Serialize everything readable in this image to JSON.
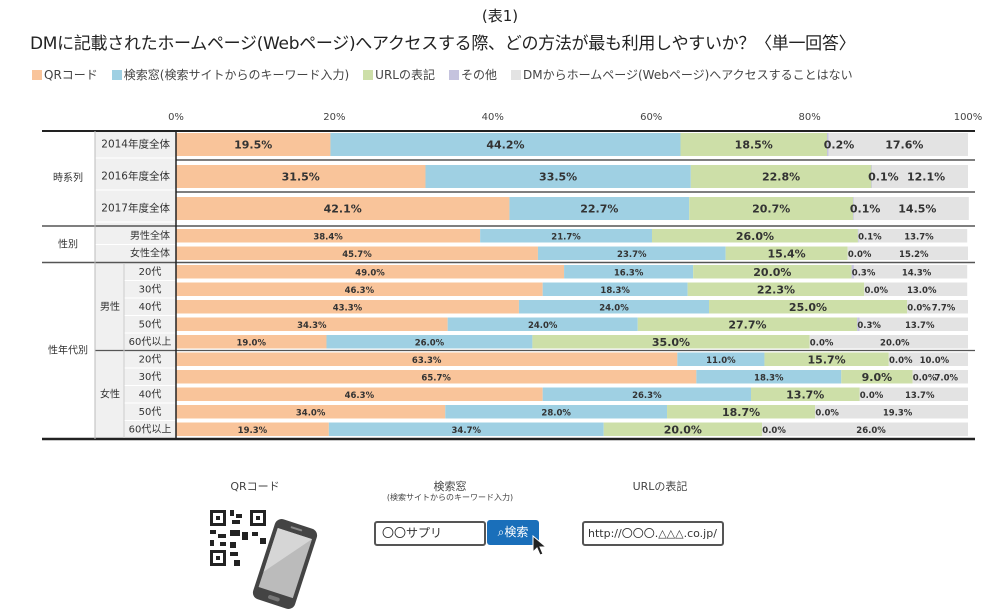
{
  "header": {
    "table_no": "(表1)",
    "title": "DMに記載されたホームページ(Webページ)へアクセスする際、どの方法が最も利用しやすいか？〈単一回答〉"
  },
  "chart_data": {
    "type": "bar",
    "orientation": "horizontal",
    "stacked": true,
    "title": "DMに記載されたホームページ(Webページ)へアクセスする際、どの方法が最も利用しやすいか？〈単一回答〉",
    "xlabel": "",
    "ylabel": "",
    "xlim": [
      0,
      100
    ],
    "x_ticks": [
      "0%",
      "20%",
      "40%",
      "60%",
      "80%",
      "100%"
    ],
    "legend_position": "top",
    "series": [
      {
        "name": "QRコード",
        "color": "#f9c49a"
      },
      {
        "name": "検索窓(検索サイトからのキーワード入力)",
        "color": "#9fd0e3"
      },
      {
        "name": "URLの表記",
        "color": "#cddfa8"
      },
      {
        "name": "その他",
        "color": "#c5c3de"
      },
      {
        "name": "DMからホームページ(Webページ)へアクセスすることはない",
        "color": "#e3e3e3"
      }
    ],
    "groups": [
      {
        "label": "時系列",
        "rows": [
          {
            "label": "2014年度全体",
            "values": [
              19.5,
              44.2,
              18.5,
              0.2,
              17.6
            ],
            "size": "large"
          },
          {
            "label": "2016年度全体",
            "values": [
              31.5,
              33.5,
              22.8,
              0.1,
              12.1
            ],
            "size": "large"
          },
          {
            "label": "2017年度全体",
            "values": [
              42.1,
              22.7,
              20.7,
              0.1,
              14.5
            ],
            "size": "large"
          }
        ]
      },
      {
        "label": "性別",
        "rows": [
          {
            "label": "男性全体",
            "values": [
              38.4,
              21.7,
              26.0,
              0.1,
              13.7
            ]
          },
          {
            "label": "女性全体",
            "values": [
              45.7,
              23.7,
              15.4,
              0.0,
              15.2
            ]
          }
        ]
      },
      {
        "label": "性年代別",
        "subgroups": [
          {
            "label": "男性",
            "rows": [
              {
                "label": "20代",
                "values": [
                  49.0,
                  16.3,
                  20.0,
                  0.3,
                  14.3
                ]
              },
              {
                "label": "30代",
                "values": [
                  46.3,
                  18.3,
                  22.3,
                  0.0,
                  13.0
                ]
              },
              {
                "label": "40代",
                "values": [
                  43.3,
                  24.0,
                  25.0,
                  0.0,
                  7.7
                ]
              },
              {
                "label": "50代",
                "values": [
                  34.3,
                  24.0,
                  27.7,
                  0.3,
                  13.7
                ]
              },
              {
                "label": "60代以上",
                "values": [
                  19.0,
                  26.0,
                  35.0,
                  0.0,
                  20.0
                ]
              }
            ]
          },
          {
            "label": "女性",
            "rows": [
              {
                "label": "20代",
                "values": [
                  63.3,
                  11.0,
                  15.7,
                  0.0,
                  10.0
                ]
              },
              {
                "label": "30代",
                "values": [
                  65.7,
                  18.3,
                  9.0,
                  0.0,
                  7.0
                ]
              },
              {
                "label": "40代",
                "values": [
                  46.3,
                  26.3,
                  13.7,
                  0.0,
                  13.7
                ]
              },
              {
                "label": "50代",
                "values": [
                  34.0,
                  28.0,
                  18.7,
                  0.0,
                  19.3
                ]
              },
              {
                "label": "60代以上",
                "values": [
                  19.3,
                  34.7,
                  20.0,
                  0.0,
                  26.0
                ]
              }
            ]
          }
        ]
      }
    ]
  },
  "illustration": {
    "qr_label": "QRコード",
    "search_label": "検索窓",
    "search_sublabel": "(検索サイトからのキーワード入力)",
    "search_input_value": "〇〇サプリ",
    "search_button_label": "検索",
    "url_label": "URLの表記",
    "url_value": "http://〇〇〇.△△△.co.jp/"
  }
}
